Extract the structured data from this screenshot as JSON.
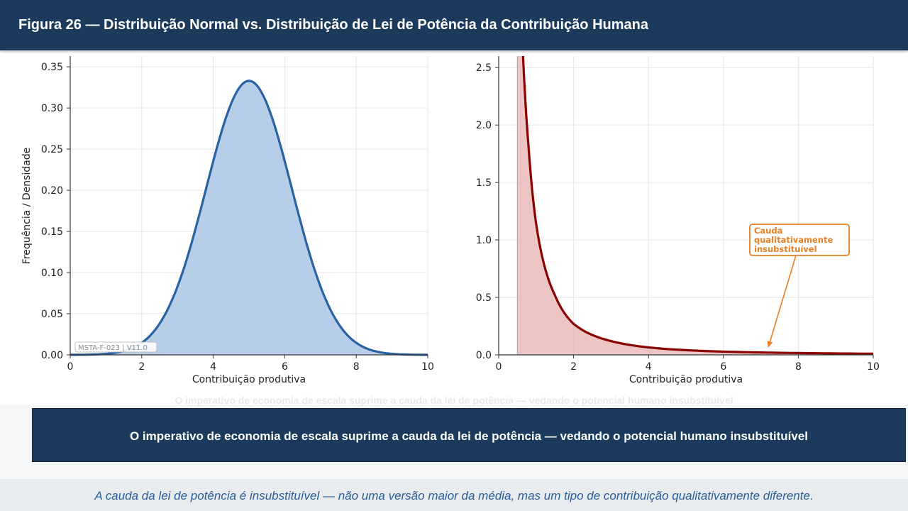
{
  "header": {
    "title": "Figura 26  — Distribuição Normal vs. Distribuição de Lei de Potência da Contribuição Humana"
  },
  "chart_data": [
    {
      "type": "area",
      "distribution": "normal",
      "mean": 5,
      "std": 1.2,
      "x_range": [
        0,
        10
      ],
      "xlabel": "Contribuição produtiva",
      "ylabel": "Frequência / Densidade",
      "ylim": [
        0,
        0.37
      ],
      "xticks": [
        "0",
        "2",
        "4",
        "6",
        "8",
        "10"
      ],
      "yticks": [
        "0.00",
        "0.05",
        "0.10",
        "0.15",
        "0.20",
        "0.25",
        "0.30",
        "0.35"
      ],
      "peak": {
        "x": 5,
        "y": 0.333
      },
      "grid": true,
      "watermark": "MSTA-F-023 | V11.0",
      "color": "#2a62a3",
      "fill": "#a9c6e3"
    },
    {
      "type": "area",
      "distribution": "power-law",
      "x_range": [
        0.5,
        10
      ],
      "xlabel": "Contribuição produtiva",
      "ylim": [
        0,
        2.6
      ],
      "xlim": [
        0,
        10
      ],
      "xticks": [
        "0",
        "2",
        "4",
        "6",
        "8",
        "10"
      ],
      "yticks": [
        "0.0",
        "0.5",
        "1.0",
        "1.5",
        "2.0",
        "2.5"
      ],
      "points": [
        {
          "x": 0.65,
          "y": 2.6
        },
        {
          "x": 0.8,
          "y": 1.8
        },
        {
          "x": 1.0,
          "y": 1.14
        },
        {
          "x": 1.5,
          "y": 0.52
        },
        {
          "x": 2.0,
          "y": 0.27
        },
        {
          "x": 3.0,
          "y": 0.12
        },
        {
          "x": 4.0,
          "y": 0.065
        },
        {
          "x": 6.0,
          "y": 0.028
        },
        {
          "x": 8.0,
          "y": 0.016
        },
        {
          "x": 10.0,
          "y": 0.01
        }
      ],
      "annotation": {
        "text": [
          "Cauda",
          "qualitativamente",
          "insubstituível"
        ],
        "target": {
          "x": 7.2,
          "y": 0.05
        }
      },
      "grid": true,
      "color": "#8b0000",
      "fill": "#e8b7b7",
      "annotation_color": "#e67e22"
    }
  ],
  "ghost_caption": "O imperativo de economia de escala suprime a cauda da lei de potência — vedando o potencial humano insubstituível",
  "banner": {
    "text": "O imperativo de economia de escala suprime a cauda da lei de potência — vedando o potencial humano insubstituível"
  },
  "footer": {
    "text": "A cauda da lei de potência é insubstituível — não uma versão maior da média, mas um tipo de contribuição qualitativamente diferente."
  }
}
